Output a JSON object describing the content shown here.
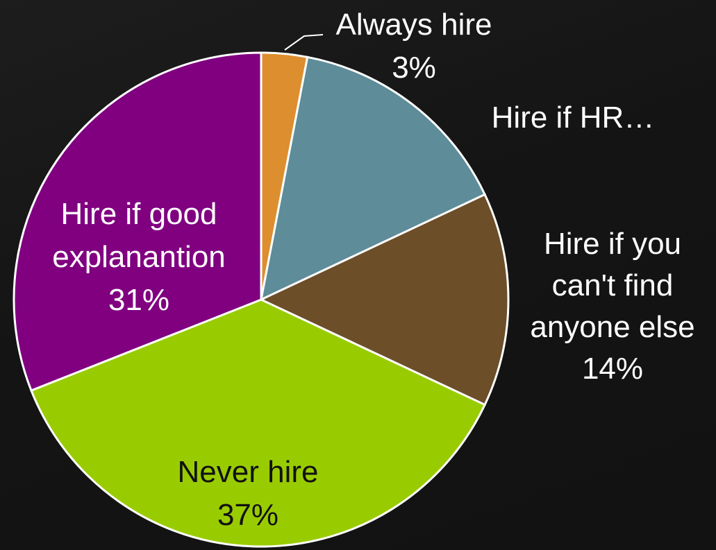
{
  "chart_data": {
    "type": "pie",
    "slices": [
      {
        "label": "Always hire",
        "value": 3,
        "value_label": "3%",
        "color": "#DD8E2E"
      },
      {
        "label": "Hire if HR…",
        "value": 15,
        "value_label": "",
        "color": "#5E8C99"
      },
      {
        "label": "Hire if you can't find anyone else",
        "value": 14,
        "value_label": "14%",
        "color": "#6C4E29"
      },
      {
        "label": "Never hire",
        "value": 37,
        "value_label": "37%",
        "color": "#99CC00"
      },
      {
        "label": "Hire if good explanantion",
        "value": 31,
        "value_label": "31%",
        "color": "#800080"
      }
    ],
    "label_lines": {
      "always": [
        "Always hire",
        "3%"
      ],
      "hr": [
        "Hire if HR…"
      ],
      "cant_find": [
        "Hire if you",
        "can't find",
        "anyone else",
        "14%"
      ],
      "never": [
        "Never hire",
        "37%"
      ],
      "good": [
        "Hire if good",
        "explanantion",
        "31%"
      ]
    },
    "start_angle": "12 o'clock",
    "direction": "clockwise",
    "background": "#141414"
  }
}
